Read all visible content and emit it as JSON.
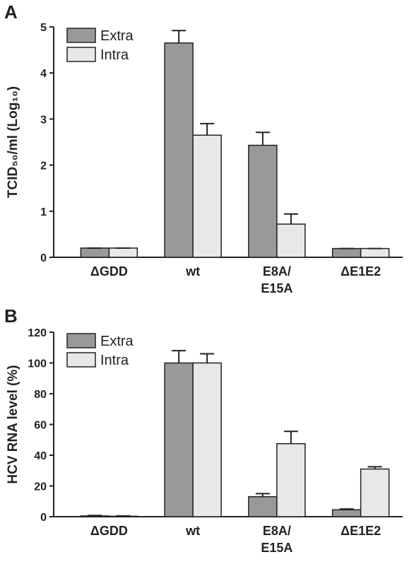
{
  "chart_data": [
    {
      "type": "bar",
      "panel_label": "A",
      "ylabel": "TCID₅₀/ml (Log₁₀)",
      "categories": [
        "ΔGDD",
        "wt",
        "E8A/\nE15A",
        "ΔE1E2"
      ],
      "series": [
        {
          "name": "Extra",
          "color": "#999999",
          "values": [
            0.2,
            4.65,
            2.43,
            0.19
          ],
          "errors": [
            0,
            0.27,
            0.28,
            0
          ]
        },
        {
          "name": "Intra",
          "color": "#e8e8e8",
          "values": [
            0.2,
            2.65,
            0.72,
            0.19
          ],
          "errors": [
            0,
            0.25,
            0.22,
            0
          ]
        }
      ],
      "ylim": [
        0,
        5
      ],
      "yticks": [
        0,
        1,
        2,
        3,
        4,
        5
      ],
      "legend": "upper left"
    },
    {
      "type": "bar",
      "panel_label": "B",
      "ylabel": "HCV RNA level (%)",
      "categories": [
        "ΔGDD",
        "wt",
        "E8A/\nE15A",
        "ΔE1E2"
      ],
      "series": [
        {
          "name": "Extra",
          "color": "#999999",
          "values": [
            0.5,
            100,
            13,
            4.5
          ],
          "errors": [
            0.3,
            8,
            2,
            0.5
          ]
        },
        {
          "name": "Intra",
          "color": "#e8e8e8",
          "values": [
            0.3,
            100,
            47.5,
            31
          ],
          "errors": [
            0.2,
            6,
            8,
            1.5
          ]
        }
      ],
      "ylim": [
        0,
        120
      ],
      "yticks": [
        0,
        20,
        40,
        60,
        80,
        100,
        120
      ],
      "legend": "upper left"
    }
  ]
}
